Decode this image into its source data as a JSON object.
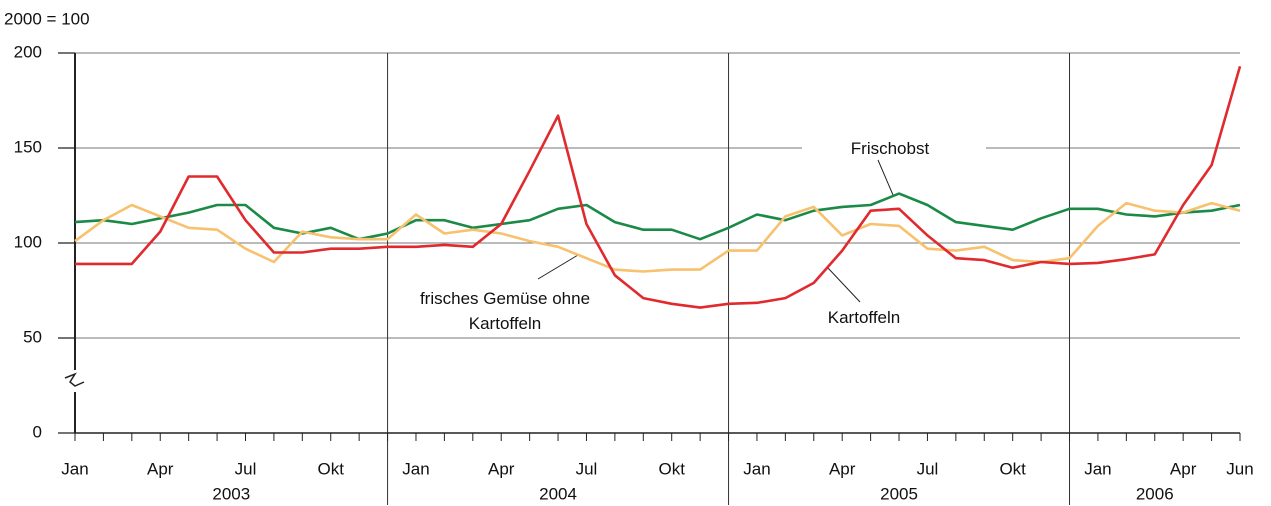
{
  "chart_data": {
    "type": "line",
    "y_label": "2000 = 100",
    "categories": [
      "Jan",
      null,
      null,
      "Apr",
      null,
      null,
      "Jul",
      null,
      null,
      "Okt",
      null,
      null,
      "Jan",
      null,
      null,
      "Apr",
      null,
      null,
      "Jul",
      null,
      null,
      "Okt",
      null,
      null,
      "Jan",
      null,
      null,
      "Apr",
      null,
      null,
      "Jul",
      null,
      null,
      "Okt",
      null,
      null,
      "Jan",
      null,
      null,
      "Apr",
      null,
      "Jun"
    ],
    "years": [
      "2003",
      "2004",
      "2005",
      "2006"
    ],
    "ylim": [
      0,
      200
    ],
    "yticks": [
      0,
      50,
      100,
      150,
      200
    ],
    "grid": true,
    "series": [
      {
        "name": "Frischobst",
        "color": "#1a8a46",
        "values": [
          111,
          112,
          110,
          113,
          116,
          120,
          120,
          108,
          105,
          108,
          102,
          105,
          112,
          112,
          108,
          110,
          112,
          118,
          120,
          111,
          107,
          107,
          102,
          108,
          115,
          112,
          117,
          119,
          120,
          126,
          120,
          111,
          109,
          107,
          113,
          118,
          118,
          115,
          114,
          116,
          117,
          120
        ]
      },
      {
        "name": "frisches Gemüse ohne Kartoffeln",
        "color": "#f7c16e",
        "values": [
          101,
          112,
          120,
          114,
          108,
          107,
          97,
          90,
          106,
          103,
          102,
          102,
          115,
          105,
          107,
          105,
          101,
          98,
          92,
          86,
          85,
          86,
          86,
          96,
          96,
          114,
          119,
          104,
          110,
          109,
          97,
          96,
          98,
          91,
          90,
          92,
          109,
          121,
          117,
          116,
          121,
          117
        ]
      },
      {
        "name": "Kartoffeln",
        "color": "#e02a2e",
        "values": [
          89,
          89,
          89,
          106,
          135,
          135,
          112,
          95,
          95,
          97,
          97,
          98,
          98,
          99,
          98,
          110,
          138,
          167,
          110,
          83,
          71,
          68,
          66,
          68,
          68.5,
          71,
          79,
          96,
          117,
          118,
          104,
          92,
          91,
          87,
          90,
          89,
          89.5,
          91.5,
          94,
          120,
          141,
          193
        ]
      }
    ]
  }
}
